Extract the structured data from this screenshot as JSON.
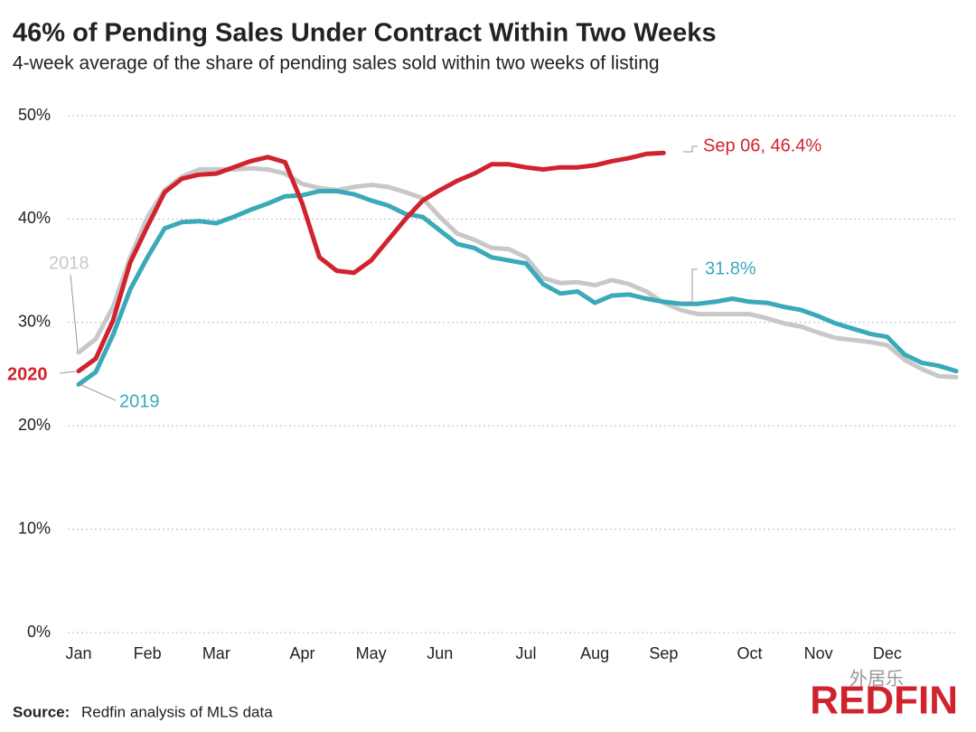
{
  "chart_data": {
    "type": "line",
    "title": "46% of Pending Sales Under Contract Within Two Weeks",
    "subtitle": "4-week average of the share of pending sales sold within two weeks of listing",
    "categories": [
      "Jan",
      null,
      null,
      null,
      "Feb",
      null,
      null,
      null,
      "Mar",
      null,
      null,
      null,
      null,
      "Apr",
      null,
      null,
      null,
      "May",
      null,
      null,
      null,
      "Jun",
      null,
      null,
      null,
      null,
      "Jul",
      null,
      null,
      null,
      "Aug",
      null,
      null,
      null,
      "Sep",
      null,
      null,
      null,
      null,
      "Oct",
      null,
      null,
      null,
      "Nov",
      null,
      null,
      null,
      "Dec",
      null,
      null,
      null,
      null
    ],
    "series": [
      {
        "name": "2018",
        "color": "#c8c8c8",
        "values": [
          27.1,
          28.4,
          31.5,
          36.3,
          40.2,
          42.8,
          44.1,
          44.8,
          44.8,
          44.8,
          44.9,
          44.8,
          44.4,
          43.4,
          43.0,
          42.8,
          43.1,
          43.3,
          43.1,
          42.6,
          42.0,
          40.2,
          38.6,
          38.0,
          37.2,
          37.1,
          36.3,
          34.3,
          33.8,
          33.9,
          33.6,
          34.1,
          33.7,
          33.0,
          31.9,
          31.2,
          30.8,
          30.8,
          30.8,
          30.8,
          30.4,
          29.9,
          29.6,
          29.0,
          28.5,
          28.3,
          28.1,
          27.8,
          26.4,
          25.5,
          24.8,
          24.7
        ]
      },
      {
        "name": "2019",
        "color": "#3aa9b9",
        "values": [
          24.0,
          25.2,
          28.8,
          33.2,
          36.3,
          39.1,
          39.7,
          39.8,
          39.6,
          40.2,
          40.9,
          41.5,
          42.2,
          42.3,
          42.7,
          42.7,
          42.4,
          41.8,
          41.3,
          40.5,
          40.2,
          38.9,
          37.6,
          37.2,
          36.3,
          36.0,
          35.7,
          33.7,
          32.8,
          33.0,
          31.9,
          32.6,
          32.7,
          32.3,
          32.0,
          31.8,
          31.8,
          32.0,
          32.3,
          32.0,
          31.9,
          31.5,
          31.2,
          30.6,
          29.9,
          29.4,
          28.9,
          28.6,
          26.9,
          26.1,
          25.8,
          25.3
        ]
      },
      {
        "name": "2020",
        "color": "#d0232e",
        "values": [
          25.3,
          26.5,
          30.2,
          35.8,
          39.3,
          42.6,
          43.9,
          44.3,
          44.4,
          45.0,
          45.6,
          46.0,
          45.5,
          41.5,
          36.3,
          35.0,
          34.8,
          36.0,
          38.0,
          40.0,
          41.8,
          42.8,
          43.7,
          44.4,
          45.3,
          45.3,
          45.0,
          44.8,
          45.0,
          45.0,
          45.2,
          45.6,
          45.9,
          46.3,
          46.4,
          null,
          null,
          null,
          null,
          null,
          null,
          null,
          null,
          null,
          null,
          null,
          null,
          null,
          null,
          null,
          null,
          null
        ]
      }
    ],
    "annotations": [
      "Sep 06, 46.4%",
      "31.8%"
    ],
    "ylim": [
      0,
      50
    ],
    "yticks": [
      {
        "value": 0,
        "label": "0%"
      },
      {
        "value": 10,
        "label": "10%"
      },
      {
        "value": 20,
        "label": "20%"
      },
      {
        "value": 30,
        "label": "30%"
      },
      {
        "value": 40,
        "label": "40%"
      },
      {
        "value": 50,
        "label": "50%"
      }
    ],
    "grid": true,
    "source_label": "Source:",
    "source": "Redfin analysis of MLS data",
    "logo": "REDFIN",
    "watermark": "外居乐"
  }
}
